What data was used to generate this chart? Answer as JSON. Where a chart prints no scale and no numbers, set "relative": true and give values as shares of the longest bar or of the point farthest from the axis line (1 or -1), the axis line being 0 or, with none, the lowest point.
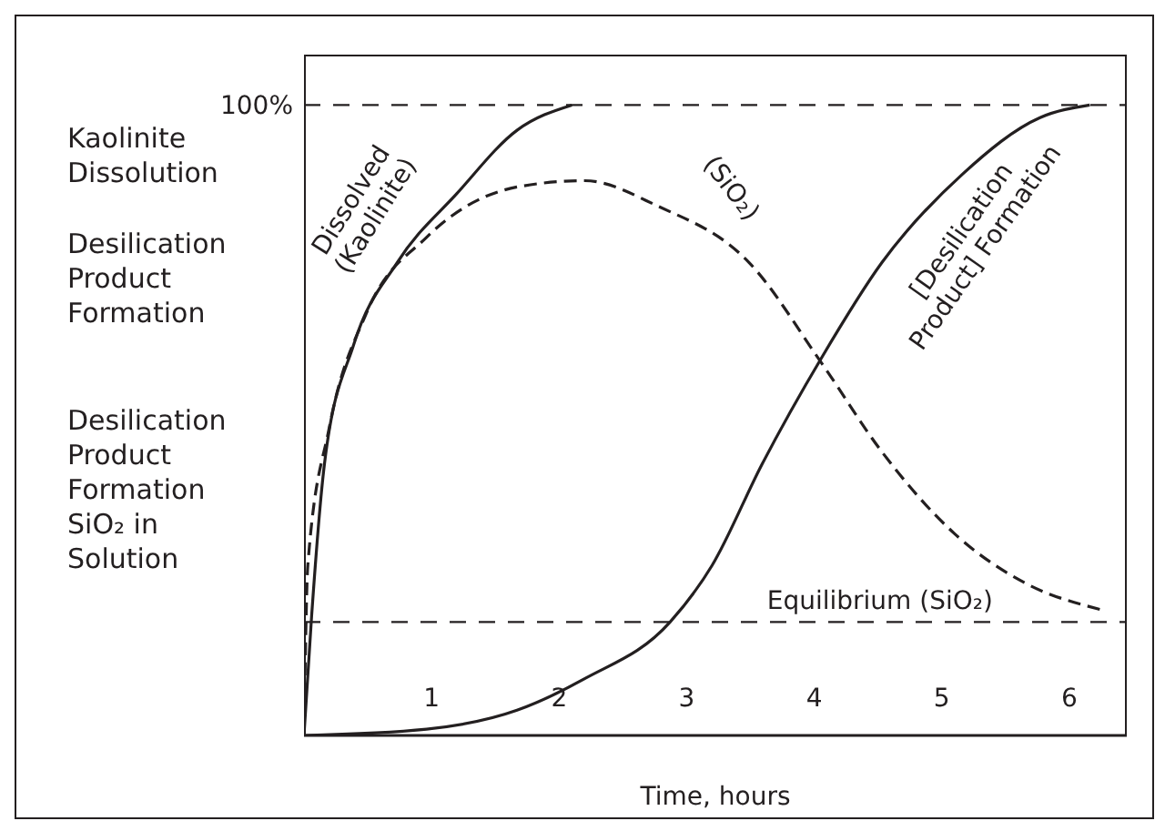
{
  "chart_data": {
    "type": "line",
    "relative": true,
    "xlabel": "Time, hours",
    "xlim": [
      0,
      6.45
    ],
    "xticks": [
      1,
      2,
      3,
      4,
      5,
      6
    ],
    "marker": "none",
    "annotations": [
      "Kaolinite Dissolution",
      "Desilication Product Formation",
      "Desilication Product Formation SiO₂ in Solution"
    ],
    "ref_lines": [
      {
        "axis": "y",
        "value": 1,
        "label": "100%",
        "color": "#231f20",
        "line_style": "dashed"
      },
      {
        "axis": "y",
        "value": 0.18,
        "label": "Equilibrium (SiO₂)",
        "color": "#231f20",
        "line_style": "dashed"
      }
    ],
    "series": [
      {
        "name": "Dissolved (Kaolinite)",
        "color": "#231f20",
        "line_style": "solid",
        "x": [
          0,
          0.06,
          0.16,
          0.39,
          0.73,
          1.2,
          1.67,
          2.1
        ],
        "values": [
          0,
          0.19,
          0.43,
          0.62,
          0.75,
          0.86,
          0.96,
          1
        ]
      },
      {
        "name": "(SiO₂)",
        "color": "#231f20",
        "line_style": "dashed",
        "x": [
          0,
          0.03,
          0.2,
          0.49,
          0.96,
          1.67,
          2.2,
          2.77,
          3.49,
          4.06,
          4.53,
          5.1,
          5.67,
          6.24
        ],
        "values": [
          0,
          0.27,
          0.49,
          0.67,
          0.79,
          0.87,
          0.88,
          0.84,
          0.75,
          0.59,
          0.45,
          0.32,
          0.24,
          0.2
        ]
      },
      {
        "name": "[Desilication Product] Formation",
        "color": "#231f20",
        "line_style": "solid",
        "x": [
          0,
          0.96,
          1.67,
          2.2,
          2.87,
          3.2,
          3.59,
          4.06,
          4.53,
          5.16,
          5.77,
          6.16
        ],
        "values": [
          0,
          0.01,
          0.04,
          0.09,
          0.18,
          0.27,
          0.43,
          0.6,
          0.75,
          0.89,
          0.98,
          1
        ]
      }
    ]
  }
}
